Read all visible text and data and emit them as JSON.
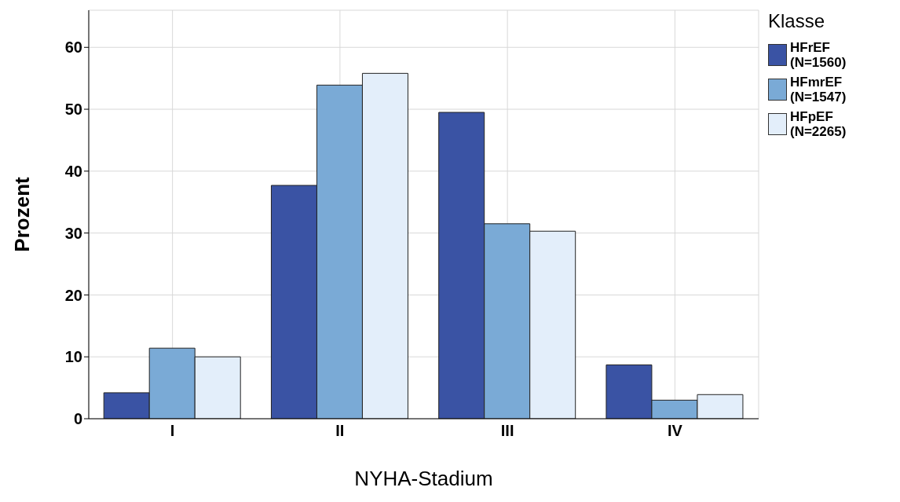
{
  "chart_data": {
    "type": "bar",
    "xlabel": "NYHA-Stadium",
    "ylabel": "Prozent",
    "legend_title": "Klasse",
    "categories": [
      "I",
      "II",
      "III",
      "IV"
    ],
    "series": [
      {
        "name": "HFrEF (N=1560)",
        "color": "#3a53a4",
        "values": [
          4.2,
          37.7,
          49.5,
          8.7
        ]
      },
      {
        "name": "HFmrEF (N=1547)",
        "color": "#7aaad6",
        "values": [
          11.4,
          53.9,
          31.5,
          3.0
        ]
      },
      {
        "name": "HFpEF (N=2265)",
        "color": "#e3eefa",
        "values": [
          10.0,
          55.8,
          30.3,
          3.9
        ]
      }
    ],
    "ylim": [
      0,
      66
    ],
    "yticks": [
      0,
      10,
      20,
      30,
      40,
      50,
      60
    ],
    "grid": true,
    "legend": "top right"
  }
}
